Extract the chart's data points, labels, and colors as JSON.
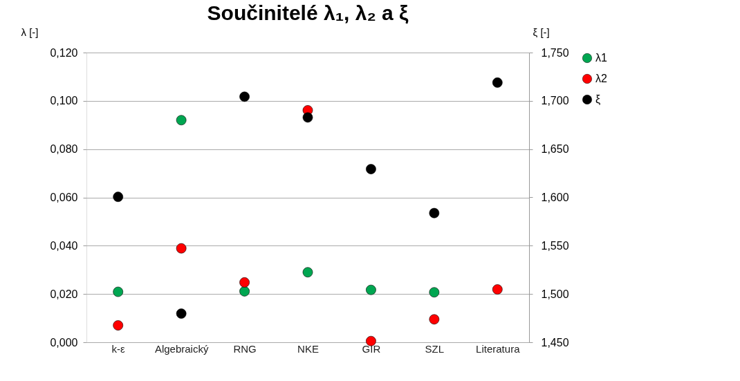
{
  "chart_data": {
    "type": "scatter",
    "title": "Součinitelé λ₁, λ₂ a ξ",
    "ylabel": "λ [-]",
    "y2label": "ξ [-]",
    "categories": [
      "k-ε",
      "Algebraický",
      "RNG",
      "NKE",
      "GIR",
      "SZL",
      "Literatura"
    ],
    "series": [
      {
        "name": "λ1",
        "color": "#00a651",
        "values": [
          0.0209,
          0.092,
          0.0211,
          0.029,
          0.0217,
          0.0207,
          null
        ]
      },
      {
        "name": "λ2",
        "color": "#ff0000",
        "values": [
          0.007,
          0.0389,
          0.0248,
          0.0961,
          0.0005,
          0.0095,
          0.0219
        ]
      },
      {
        "name": "ξ",
        "color": "#000000",
        "axis": "y2",
        "values": [
          1.6006,
          1.4797,
          1.7043,
          1.6828,
          1.6293,
          1.5838,
          1.7189
        ]
      }
    ],
    "ylim": [
      0,
      0.12
    ],
    "yticks": [
      {
        "value": 0,
        "label": "0,000"
      },
      {
        "value": 0.02,
        "label": "0,020"
      },
      {
        "value": 0.04,
        "label": "0,040"
      },
      {
        "value": 0.06,
        "label": "0,060"
      },
      {
        "value": 0.08,
        "label": "0,080"
      },
      {
        "value": 0.1,
        "label": "0,100"
      },
      {
        "value": 0.12,
        "label": "0,120"
      }
    ],
    "y2lim": [
      1.45,
      1.75
    ],
    "y2ticks": [
      {
        "value": 1.45,
        "label": "1,450"
      },
      {
        "value": 1.5,
        "label": "1,500"
      },
      {
        "value": 1.55,
        "label": "1,550"
      },
      {
        "value": 1.6,
        "label": "1,600"
      },
      {
        "value": 1.65,
        "label": "1,650"
      },
      {
        "value": 1.7,
        "label": "1,700"
      },
      {
        "value": 1.75,
        "label": "1,750"
      }
    ],
    "grid": "y",
    "legend": "right",
    "marker": "circle"
  }
}
